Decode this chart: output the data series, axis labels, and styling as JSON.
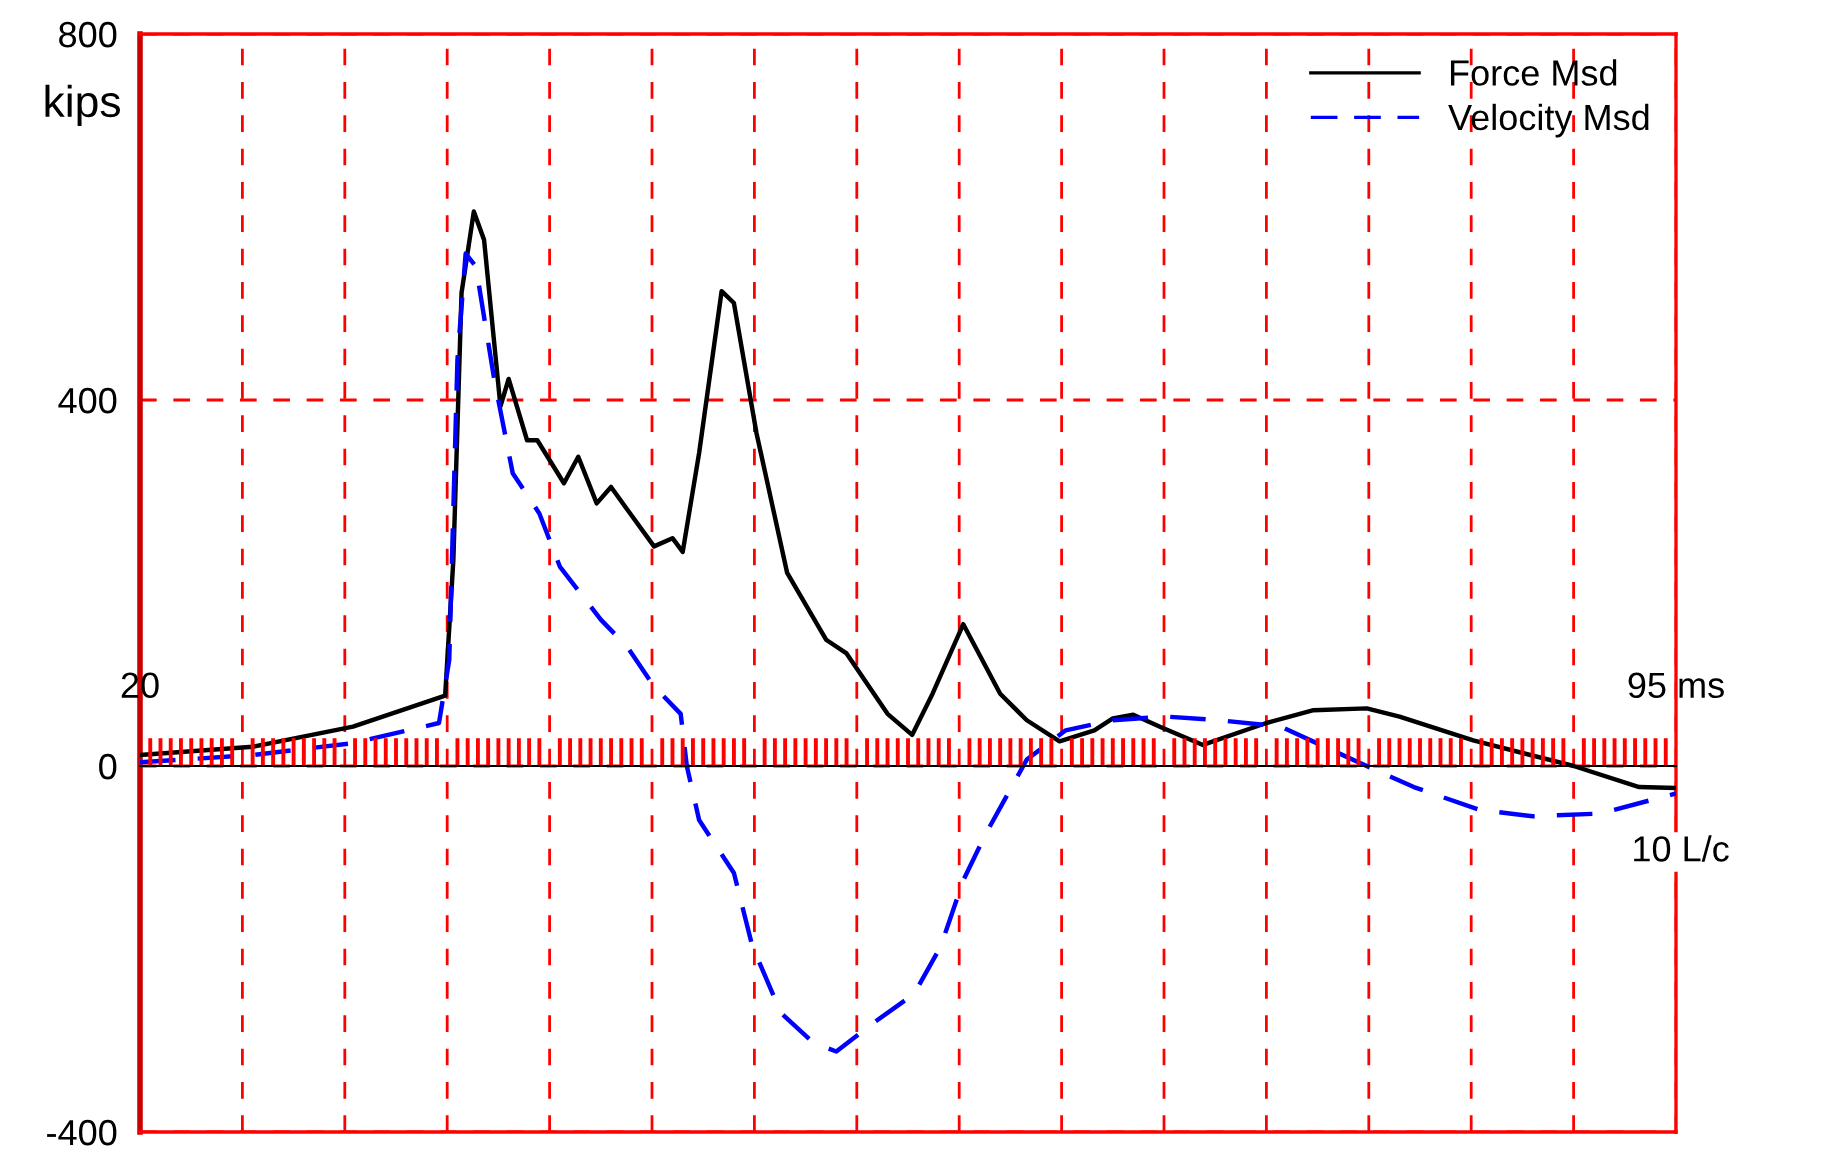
{
  "chart_data": {
    "type": "line",
    "ylabel": "kips",
    "xlim": [
      20,
      95
    ],
    "ylim": [
      -400,
      800
    ],
    "xticks": [
      {
        "value": 20,
        "label": "20"
      },
      {
        "value": 25,
        "label": null
      },
      {
        "value": 30,
        "label": null
      },
      {
        "value": 35,
        "label": null
      },
      {
        "value": 40,
        "label": null
      },
      {
        "value": 45,
        "label": null
      },
      {
        "value": 50,
        "label": null
      },
      {
        "value": 55,
        "label": null
      },
      {
        "value": 60,
        "label": null
      },
      {
        "value": 65,
        "label": null
      },
      {
        "value": 70,
        "label": null
      },
      {
        "value": 75,
        "label": null
      },
      {
        "value": 80,
        "label": null
      },
      {
        "value": 85,
        "label": null
      },
      {
        "value": 90,
        "label": null
      },
      {
        "value": 95,
        "label": "95 ms"
      }
    ],
    "yticks": [
      -400,
      0,
      400,
      800
    ],
    "grid": true,
    "legend": "top right",
    "marker": "none",
    "annotations": [
      "10 L/c"
    ],
    "series": [
      {
        "name": "Force Msd",
        "color": "#000000",
        "line_style": "solid",
        "x": [
          20,
          25.5,
          30.4,
          34.9,
          35.3,
          35.7,
          36.3,
          36.8,
          37.6,
          38.0,
          38.9,
          39.4,
          40.7,
          41.4,
          42.3,
          43.0,
          43.8,
          45.1,
          46.0,
          46.5,
          47.3,
          48.4,
          49.0,
          50.1,
          51.6,
          53.5,
          54.5,
          56.5,
          57.7,
          58.7,
          60.2,
          62.0,
          63.3,
          64.9,
          66.6,
          67.5,
          68.5,
          69.8,
          71.9,
          75.0,
          77.3,
          79.9,
          81.5,
          85.1,
          90.0,
          93.2,
          95.0
        ],
        "values": [
          12,
          21,
          43,
          77,
          225,
          517,
          606,
          575,
          393,
          423,
          356,
          356,
          309,
          338,
          287,
          305,
          280,
          240,
          249,
          234,
          342,
          519,
          506,
          364,
          211,
          138,
          123,
          57,
          34,
          79,
          155,
          79,
          50,
          27,
          39,
          52,
          56,
          43,
          23,
          47,
          61,
          63,
          54,
          28,
          0,
          -23,
          -24
        ]
      },
      {
        "name": "Velocity Msd",
        "color": "#0000ff",
        "line_style": "dashed",
        "x": [
          20,
          25.5,
          30.4,
          34.6,
          35.1,
          35.5,
          35.9,
          36.4,
          37.3,
          38.2,
          39.5,
          40.5,
          42.5,
          43.8,
          45.1,
          46.4,
          46.7,
          47.3,
          49.0,
          49.9,
          51.3,
          52.9,
          54.0,
          55.8,
          57.8,
          59.1,
          60.2,
          61.3,
          63.3,
          65.2,
          67.5,
          70.1,
          72.7,
          75.7,
          79.6,
          82.2,
          85.4,
          88.0,
          91.3,
          95.0
        ],
        "values": [
          4,
          12,
          25,
          47,
          116,
          444,
          560,
          546,
          422,
          320,
          276,
          218,
          160,
          130,
          87,
          57,
          0,
          -59,
          -117,
          -197,
          -270,
          -303,
          -312,
          -281,
          -249,
          -197,
          -125,
          -74,
          7,
          39,
          50,
          54,
          50,
          43,
          3,
          -23,
          -48,
          -55,
          -52,
          -30
        ]
      }
    ]
  }
}
